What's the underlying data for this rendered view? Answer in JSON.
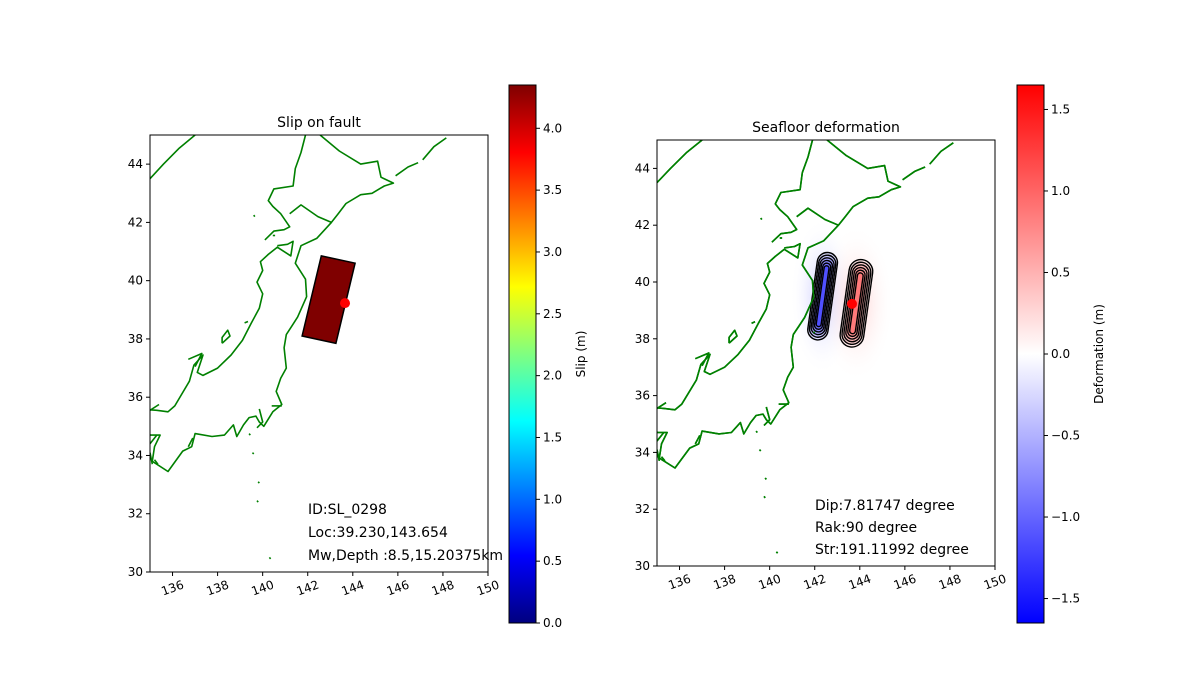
{
  "chart_data": [
    {
      "type": "map",
      "title": "Slip on fault",
      "xlim": [
        135,
        150
      ],
      "ylim": [
        30,
        45
      ],
      "x_ticks": [
        136,
        138,
        140,
        142,
        144,
        146,
        148,
        150
      ],
      "y_ticks": [
        30,
        32,
        34,
        36,
        38,
        40,
        42,
        44
      ],
      "fault_corners": [
        [
          142.6,
          40.85
        ],
        [
          144.1,
          40.6
        ],
        [
          143.25,
          37.85
        ],
        [
          141.75,
          38.1
        ]
      ],
      "fault_slip_m": 4.35,
      "epicenter": [
        143.654,
        39.23
      ],
      "colorbar": {
        "label": "Slip (m)",
        "range": [
          0,
          4.35
        ],
        "ticks": [
          "0.0",
          "0.5",
          "1.0",
          "1.5",
          "2.0",
          "2.5",
          "3.0",
          "3.5",
          "4.0"
        ],
        "colors": [
          "#00007f",
          "#0000ff",
          "#0080ff",
          "#00ffff",
          "#80ff80",
          "#ffff00",
          "#ff8000",
          "#ff0000",
          "#7f0000"
        ]
      },
      "annotations": [
        "ID:SL_0298",
        "Loc:39.230,143.654",
        "Mw,Depth :8.5,15.20375km"
      ],
      "coastline_color": "#008000"
    },
    {
      "type": "map",
      "title": "Seafloor deformation",
      "xlim": [
        135,
        150
      ],
      "ylim": [
        30,
        45
      ],
      "x_ticks": [
        136,
        138,
        140,
        142,
        144,
        146,
        148,
        150
      ],
      "y_ticks": [
        30,
        32,
        34,
        36,
        38,
        40,
        42,
        44
      ],
      "epicenter": [
        143.654,
        39.23
      ],
      "deformation_lobes": [
        {
          "center": [
            142.35,
            39.5
          ],
          "extent": [
            0.9,
            3.1
          ],
          "sign": "negative",
          "peak_m": -1.65
        },
        {
          "center": [
            143.85,
            39.25
          ],
          "extent": [
            1.05,
            3.1
          ],
          "sign": "positive",
          "peak_m": 1.65
        }
      ],
      "colorbar": {
        "label": "Deformation (m)",
        "range": [
          -1.65,
          1.65
        ],
        "ticks": [
          "−1.5",
          "−1.0",
          "−0.5",
          "0.0",
          "0.5",
          "1.0",
          "1.5"
        ],
        "colors": [
          "#0000ff",
          "#ffffff",
          "#ff0000"
        ]
      },
      "annotations": [
        "Dip:7.81747 degree",
        "Rak:90 degree",
        "Str:191.11992 degree"
      ],
      "coastline_color": "#008000"
    }
  ]
}
